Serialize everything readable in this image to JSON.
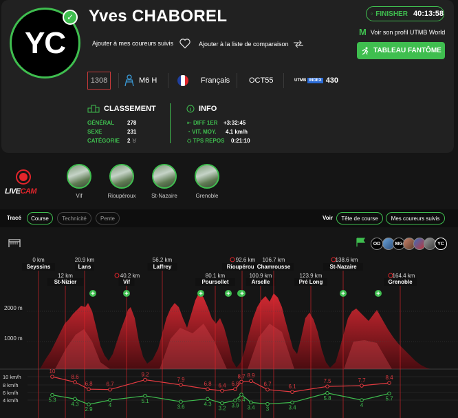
{
  "runner": {
    "initials": "YC",
    "name": "Yves CHABOREL",
    "follow_label": "Ajouter à mes coureurs suivis",
    "compare_label": "Ajouter à la liste de comparaison",
    "finisher_label": "FINISHER",
    "finish_time": "40:13:58",
    "utmb_profile_label": "Voir son profil UTMB World",
    "ghost_button_label": "TABLEAU FANTÔME",
    "bib": "1308",
    "category": "M6 H",
    "nationality": "Français",
    "club": "OCT55",
    "utmb_badge": "UTMB",
    "index_badge": "INDEX",
    "utmb_index": "430"
  },
  "ranking": {
    "title": "CLASSEMENT",
    "rows": [
      {
        "label": "GÉNÉRAL",
        "value": "278"
      },
      {
        "label": "SEXE",
        "value": "231"
      },
      {
        "label": "CATÉGORIE",
        "value": "2"
      }
    ]
  },
  "info": {
    "title": "INFO",
    "rows": [
      {
        "label": "DIFF 1ER",
        "value": "+3:32:45"
      },
      {
        "label": "VIT. MOY.",
        "value": "4.1 km/h"
      },
      {
        "label": "TPS REPOS",
        "value": "0:21:10"
      }
    ]
  },
  "livecam": {
    "live": "LIVE",
    "cam": "CAM",
    "cams": [
      {
        "name": "Vif"
      },
      {
        "name": "Rioupéroux"
      },
      {
        "name": "St-Nazaire"
      },
      {
        "name": "Grenoble"
      }
    ]
  },
  "filters": {
    "trace_label": "Tracé",
    "trace_options": [
      "Course",
      "Technicité",
      "Pente"
    ],
    "trace_selected": "Course",
    "see_label": "Voir",
    "see_options": [
      "Tête de course",
      "Mes coureurs suivis"
    ]
  },
  "runners_on_course": [
    "OD",
    "MG",
    "YC"
  ],
  "chart_data": {
    "type": "area",
    "elevation_ticks": [
      "2000 m",
      "1000 m"
    ],
    "speed_ticks": [
      "10 km/h",
      "8 km/h",
      "6 km/h",
      "4 km/h"
    ],
    "waypoints": [
      {
        "km": "0 km",
        "name": "Seyssins"
      },
      {
        "km": "12 km",
        "name": "St-Nizier"
      },
      {
        "km": "20.9 km",
        "name": "Lans"
      },
      {
        "km": "40.2 km",
        "name": "Vif"
      },
      {
        "km": "56.2 km",
        "name": "Laffrey"
      },
      {
        "km": "80.1 km",
        "name": "Poursollet"
      },
      {
        "km": "92.6 km",
        "name": "Rioupéroux"
      },
      {
        "km": "100.9 km",
        "name": "Arselle"
      },
      {
        "km": "106.7 km",
        "name": "Chamrousse"
      },
      {
        "km": "123.9 km",
        "name": "Pré Long"
      },
      {
        "km": "138.6 km",
        "name": "St-Nazaire"
      },
      {
        "km": "164.4 km",
        "name": "Grenoble"
      }
    ],
    "series": [
      {
        "values": [
          10,
          8.6,
          6.8,
          6.7,
          9.2,
          7.9,
          6.8,
          6.4,
          6.8,
          8.7,
          8.9,
          6.7,
          6.1,
          7.5,
          7.7,
          8.4
        ]
      },
      {
        "values": [
          5.3,
          4.3,
          2.9,
          4,
          5.1,
          3.6,
          4.3,
          3.2,
          3.9,
          5.4,
          3.4,
          3,
          3.4,
          5.8,
          4,
          5.7
        ]
      }
    ]
  }
}
